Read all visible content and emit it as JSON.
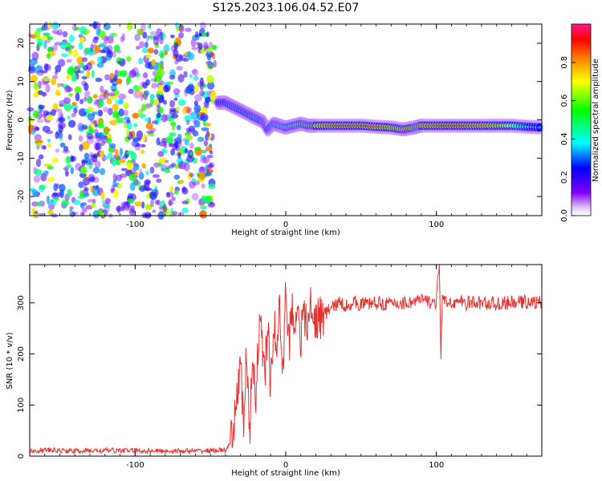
{
  "title": "S125.2023.106.04.52.E07",
  "chart_data": [
    {
      "type": "heatmap",
      "xlabel": "Height of straight line (km)",
      "ylabel": "Frequency (Hz)",
      "xlim": [
        -170,
        170
      ],
      "ylim": [
        -25,
        25
      ],
      "x_ticks": [
        -100,
        0,
        100
      ],
      "y_ticks": [
        -20,
        -10,
        0,
        10,
        20
      ],
      "colorbar": {
        "label": "Normalized spectral amplitude",
        "range": [
          0,
          1
        ],
        "ticks": [
          0.0,
          0.2,
          0.4,
          0.6,
          0.8
        ],
        "colormap": [
          "#ffffff",
          "#7f00ff",
          "#0000ff",
          "#00ffff",
          "#00ff00",
          "#ffff00",
          "#ff8000",
          "#ff0000",
          "#ff1a8c"
        ]
      },
      "noise_region": {
        "x_range": [
          -170,
          -47
        ],
        "y_range": [
          -25,
          25
        ],
        "amplitude_range": [
          0.05,
          0.35
        ]
      },
      "signal_track": [
        {
          "x": -45,
          "y": 4.5,
          "amp": 0.25
        },
        {
          "x": -40,
          "y": 4.5,
          "amp": 0.35
        },
        {
          "x": -35,
          "y": 3.5,
          "amp": 0.45
        },
        {
          "x": -30,
          "y": 2.5,
          "amp": 0.4
        },
        {
          "x": -25,
          "y": 1.5,
          "amp": 0.4
        },
        {
          "x": -20,
          "y": 0.5,
          "amp": 0.5
        },
        {
          "x": -15,
          "y": -0.5,
          "amp": 0.4
        },
        {
          "x": -12,
          "y": -2.5,
          "amp": 0.35
        },
        {
          "x": -8,
          "y": -1.0,
          "amp": 0.45
        },
        {
          "x": -4,
          "y": -1.5,
          "amp": 0.5
        },
        {
          "x": 0,
          "y": -2.0,
          "amp": 0.55
        },
        {
          "x": 5,
          "y": -1.5,
          "amp": 0.6
        },
        {
          "x": 10,
          "y": -1.0,
          "amp": 0.65
        },
        {
          "x": 15,
          "y": -1.5,
          "amp": 0.7
        },
        {
          "x": 20,
          "y": -1.5,
          "amp": 0.75
        },
        {
          "x": 30,
          "y": -1.5,
          "amp": 0.85
        },
        {
          "x": 40,
          "y": -1.5,
          "amp": 0.9
        },
        {
          "x": 50,
          "y": -1.5,
          "amp": 0.9
        },
        {
          "x": 60,
          "y": -1.8,
          "amp": 0.85
        },
        {
          "x": 70,
          "y": -2.0,
          "amp": 0.8
        },
        {
          "x": 78,
          "y": -2.5,
          "amp": 0.75
        },
        {
          "x": 85,
          "y": -2.0,
          "amp": 0.75
        },
        {
          "x": 90,
          "y": -1.5,
          "amp": 0.8
        },
        {
          "x": 100,
          "y": -1.5,
          "amp": 0.85
        },
        {
          "x": 110,
          "y": -1.5,
          "amp": 0.9
        },
        {
          "x": 120,
          "y": -1.5,
          "amp": 0.85
        },
        {
          "x": 130,
          "y": -1.5,
          "amp": 0.8
        },
        {
          "x": 140,
          "y": -1.5,
          "amp": 0.75
        },
        {
          "x": 150,
          "y": -1.5,
          "amp": 0.6
        },
        {
          "x": 160,
          "y": -1.8,
          "amp": 0.4
        },
        {
          "x": 170,
          "y": -2.0,
          "amp": 0.3
        }
      ]
    },
    {
      "type": "line",
      "xlabel": "Height of straight line (km)",
      "ylabel": "SNR (10 * v/v)",
      "xlim": [
        -170,
        170
      ],
      "ylim": [
        0,
        375
      ],
      "x_ticks": [
        -100,
        0,
        100
      ],
      "y_ticks": [
        0,
        100,
        200,
        300
      ],
      "color": "#e8302e",
      "series": [
        {
          "x": [
            -170,
            -160,
            -140,
            -120,
            -100,
            -80,
            -60,
            -40,
            -35,
            -32,
            -30,
            -28,
            -26,
            -24,
            -22,
            -20,
            -18,
            -16,
            -14,
            -12,
            -10,
            -8,
            -6,
            -4,
            -2,
            0,
            2,
            4,
            6,
            8,
            10,
            12,
            14,
            16,
            18,
            20,
            25,
            30,
            35,
            40,
            45,
            50,
            60,
            70,
            80,
            90,
            100,
            102,
            103,
            104,
            106,
            110,
            120,
            130,
            140,
            150,
            160,
            170
          ],
          "y": [
            10,
            12,
            10,
            11,
            11,
            10,
            10,
            12,
            30,
            140,
            175,
            60,
            210,
            20,
            200,
            120,
            230,
            250,
            150,
            255,
            130,
            270,
            200,
            300,
            140,
            345,
            210,
            290,
            260,
            300,
            230,
            280,
            245,
            300,
            260,
            270,
            275,
            290,
            300,
            295,
            300,
            298,
            300,
            298,
            300,
            305,
            300,
            380,
            200,
            310,
            298,
            302,
            300,
            300,
            298,
            300,
            302,
            300
          ]
        }
      ]
    }
  ]
}
